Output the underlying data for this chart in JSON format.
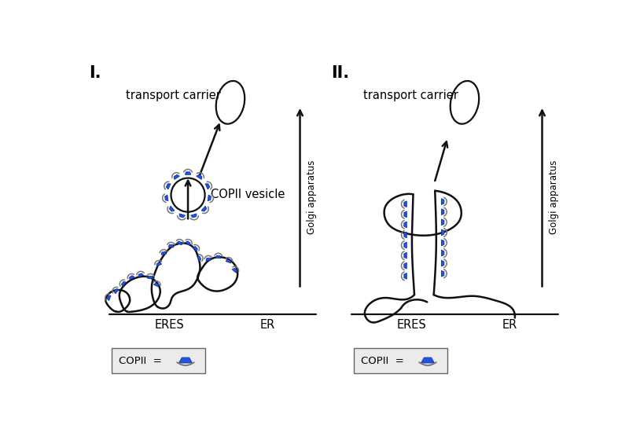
{
  "background_color": "#ffffff",
  "title_I": "I.",
  "title_II": "II.",
  "label_transport_carrier": "transport carrier",
  "label_copii_vesicle": "COPII vesicle",
  "label_eres": "ERES",
  "label_er": "ER",
  "label_golgi": "Golgi apparatus",
  "label_copii_legend": "COPII  =",
  "blue_color": "#2255dd",
  "outline_color": "#111111",
  "legend_bg": "#ebebeb",
  "font_size_title": 15,
  "font_size_label": 10.5,
  "font_size_small": 8.5
}
